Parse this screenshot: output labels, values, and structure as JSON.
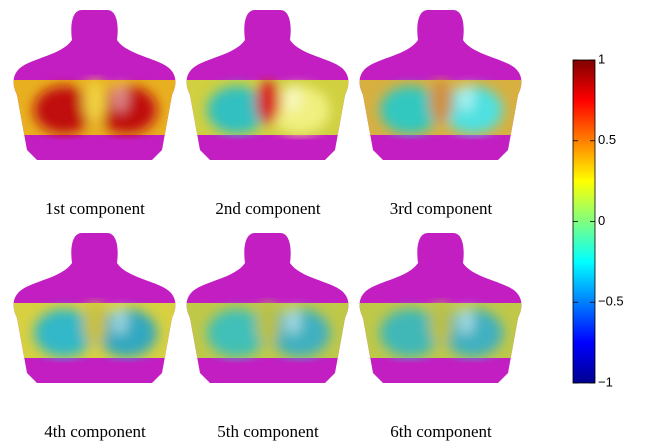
{
  "panels": [
    {
      "label": "1st component"
    },
    {
      "label": "2nd component"
    },
    {
      "label": "3rd component"
    },
    {
      "label": "4th component"
    },
    {
      "label": "5th component"
    },
    {
      "label": "6th component"
    }
  ],
  "colorbar": {
    "lim": [
      -1,
      1
    ],
    "ticks": [
      1,
      0.5,
      0,
      {
        "value": -0.5,
        "label": "−0.5"
      },
      {
        "value": -1,
        "label": "−1"
      }
    ]
  }
}
